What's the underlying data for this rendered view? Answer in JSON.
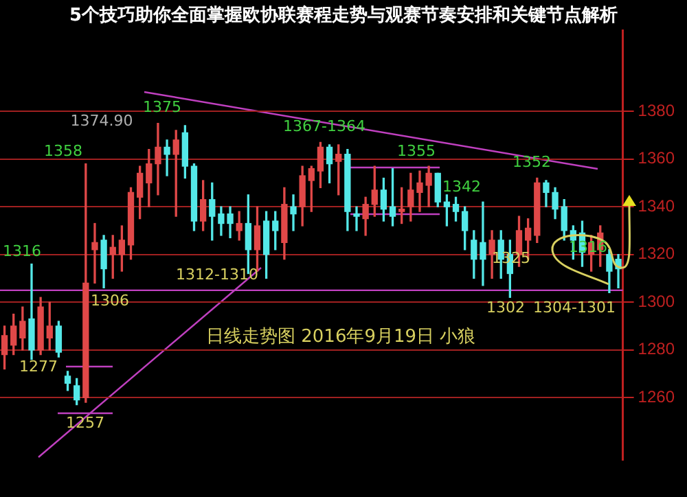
{
  "chart_data": {
    "type": "candlestick",
    "title": "5个技巧助你全面掌握欧协联赛程走势与观赛节奏安排和关键节点解析",
    "categories": [
      null,
      null,
      null,
      null,
      null,
      null,
      null,
      null,
      null,
      null,
      null,
      null,
      null,
      null,
      null,
      null,
      null,
      null,
      null,
      null,
      null,
      null,
      null,
      null,
      null,
      null,
      null,
      null,
      null,
      null,
      null,
      null,
      null,
      null,
      null,
      null,
      null,
      null,
      null,
      null,
      null,
      null,
      null,
      null,
      null,
      null,
      null,
      null,
      null,
      null,
      null,
      null,
      null,
      null,
      null,
      null,
      null,
      null,
      null,
      null,
      null,
      null,
      null,
      null,
      null,
      null,
      null,
      null,
      null
    ],
    "ohlc": [
      [
        1278,
        1290,
        1272,
        1286
      ],
      [
        1282,
        1295,
        1278,
        1290
      ],
      [
        1285,
        1298,
        1280,
        1292
      ],
      [
        1293,
        1316,
        1276,
        1280
      ],
      [
        1280,
        1302,
        1278,
        1298
      ],
      [
        1285,
        1300,
        1280,
        1290
      ],
      [
        1290,
        1292,
        1277,
        1279
      ],
      [
        1269,
        1271,
        1263,
        1266
      ],
      [
        1265,
        1268,
        1257,
        1259
      ],
      [
        1260,
        1358,
        1258,
        1308
      ],
      [
        1322,
        1333,
        1308,
        1325
      ],
      [
        1326,
        1328,
        1306,
        1314
      ],
      [
        1320,
        1328,
        1310,
        1323
      ],
      [
        1320,
        1332,
        1313,
        1326
      ],
      [
        1324,
        1348,
        1318,
        1346
      ],
      [
        1344,
        1357,
        1335,
        1354
      ],
      [
        1350,
        1364,
        1340,
        1358
      ],
      [
        1358,
        1375,
        1345,
        1365
      ],
      [
        1365,
        1368,
        1353,
        1362
      ],
      [
        1362,
        1372,
        1336,
        1368
      ],
      [
        1371,
        1374,
        1352,
        1357
      ],
      [
        1357,
        1358,
        1330,
        1334
      ],
      [
        1334,
        1351,
        1330,
        1343
      ],
      [
        1343,
        1350,
        1326,
        1336
      ],
      [
        1337,
        1340,
        1328,
        1333
      ],
      [
        1337,
        1340,
        1327,
        1333
      ],
      [
        1330,
        1338,
        1326,
        1333
      ],
      [
        1333,
        1345,
        1312,
        1322
      ],
      [
        1322,
        1340,
        1313,
        1332
      ],
      [
        1334,
        1338,
        1310,
        1320
      ],
      [
        1334,
        1338,
        1322,
        1330
      ],
      [
        1325,
        1348,
        1318,
        1341
      ],
      [
        1340,
        1345,
        1330,
        1337
      ],
      [
        1340,
        1357,
        1332,
        1353
      ],
      [
        1351,
        1357,
        1338,
        1356
      ],
      [
        1355,
        1367,
        1348,
        1365
      ],
      [
        1365,
        1366,
        1350,
        1358
      ],
      [
        1359,
        1366,
        1345,
        1362
      ],
      [
        1362,
        1364,
        1330,
        1338
      ],
      [
        1337,
        1340,
        1330,
        1336
      ],
      [
        1335,
        1344,
        1328,
        1341
      ],
      [
        1341,
        1357,
        1336,
        1347
      ],
      [
        1347,
        1352,
        1334,
        1339
      ],
      [
        1340,
        1356,
        1332,
        1336
      ],
      [
        1338,
        1348,
        1333,
        1339
      ],
      [
        1340,
        1354,
        1334,
        1347
      ],
      [
        1346,
        1355,
        1338,
        1350
      ],
      [
        1349,
        1357,
        1340,
        1354
      ],
      [
        1354,
        1354,
        1340,
        1342
      ],
      [
        1342,
        1345,
        1332,
        1340
      ],
      [
        1341,
        1344,
        1334,
        1338
      ],
      [
        1338,
        1340,
        1322,
        1330
      ],
      [
        1326,
        1330,
        1310,
        1318
      ],
      [
        1325,
        1342,
        1307,
        1318
      ],
      [
        1320,
        1330,
        1310,
        1326
      ],
      [
        1326,
        1330,
        1310,
        1318
      ],
      [
        1320,
        1326,
        1302,
        1312
      ],
      [
        1320,
        1336,
        1315,
        1330
      ],
      [
        1326,
        1335,
        1318,
        1331
      ],
      [
        1328,
        1352,
        1325,
        1350
      ],
      [
        1350,
        1351,
        1340,
        1346
      ],
      [
        1346,
        1348,
        1335,
        1339
      ],
      [
        1340,
        1343,
        1326,
        1330
      ],
      [
        1330,
        1332,
        1318,
        1326
      ],
      [
        1329,
        1334,
        1315,
        1321
      ],
      [
        1320,
        1328,
        1313,
        1325
      ],
      [
        1322,
        1332,
        1315,
        1329
      ],
      [
        1320,
        1322,
        1304,
        1313
      ],
      [
        1318,
        1320,
        1306,
        1314
      ]
    ],
    "colors": [
      "#e04848",
      "#e04848",
      "#e04848",
      "#54e8e8",
      "#e04848",
      "#e04848",
      "#54e8e8",
      "#54e8e8",
      "#54e8e8",
      "#e04848",
      "#e04848",
      "#54e8e8",
      "#e04848",
      "#e04848",
      "#e04848",
      "#e04848",
      "#e04848",
      "#e04848",
      "#54e8e8",
      "#e04848",
      "#54e8e8",
      "#54e8e8",
      "#e04848",
      "#54e8e8",
      "#54e8e8",
      "#54e8e8",
      "#e04848",
      "#54e8e8",
      "#e04848",
      "#54e8e8",
      "#54e8e8",
      "#e04848",
      "#54e8e8",
      "#e04848",
      "#e04848",
      "#e04848",
      "#54e8e8",
      "#e04848",
      "#54e8e8",
      "#54e8e8",
      "#e04848",
      "#e04848",
      "#54e8e8",
      "#54e8e8",
      "#e04848",
      "#e04848",
      "#e04848",
      "#e04848",
      "#54e8e8",
      "#54e8e8",
      "#54e8e8",
      "#54e8e8",
      "#54e8e8",
      "#54e8e8",
      "#e04848",
      "#54e8e8",
      "#54e8e8",
      "#e04848",
      "#e04848",
      "#e04848",
      "#54e8e8",
      "#54e8e8",
      "#54e8e8",
      "#54e8e8",
      "#54e8e8",
      "#e04848",
      "#e04848",
      "#54e8e8",
      "#54e8e8"
    ],
    "annotations": [
      "1374.90",
      "1375",
      "1358",
      "1316",
      "1306",
      "1277",
      "1257",
      "1367-1364",
      "1355",
      "1342",
      "1312-1310",
      "1352",
      "1302",
      "1325",
      "1304-1301",
      "1316",
      "日线走势图 2016年9月19日 小狼"
    ],
    "ref_lines": [
      {
        "axis": "y",
        "value": 1305,
        "color": "#c040c0"
      }
    ],
    "ylim": [
      1234,
      1414
    ],
    "yticks": [
      1260,
      1280,
      1300,
      1320,
      1340,
      1360,
      1380
    ],
    "tick_labels": "y",
    "grid": "y",
    "legend": false
  }
}
